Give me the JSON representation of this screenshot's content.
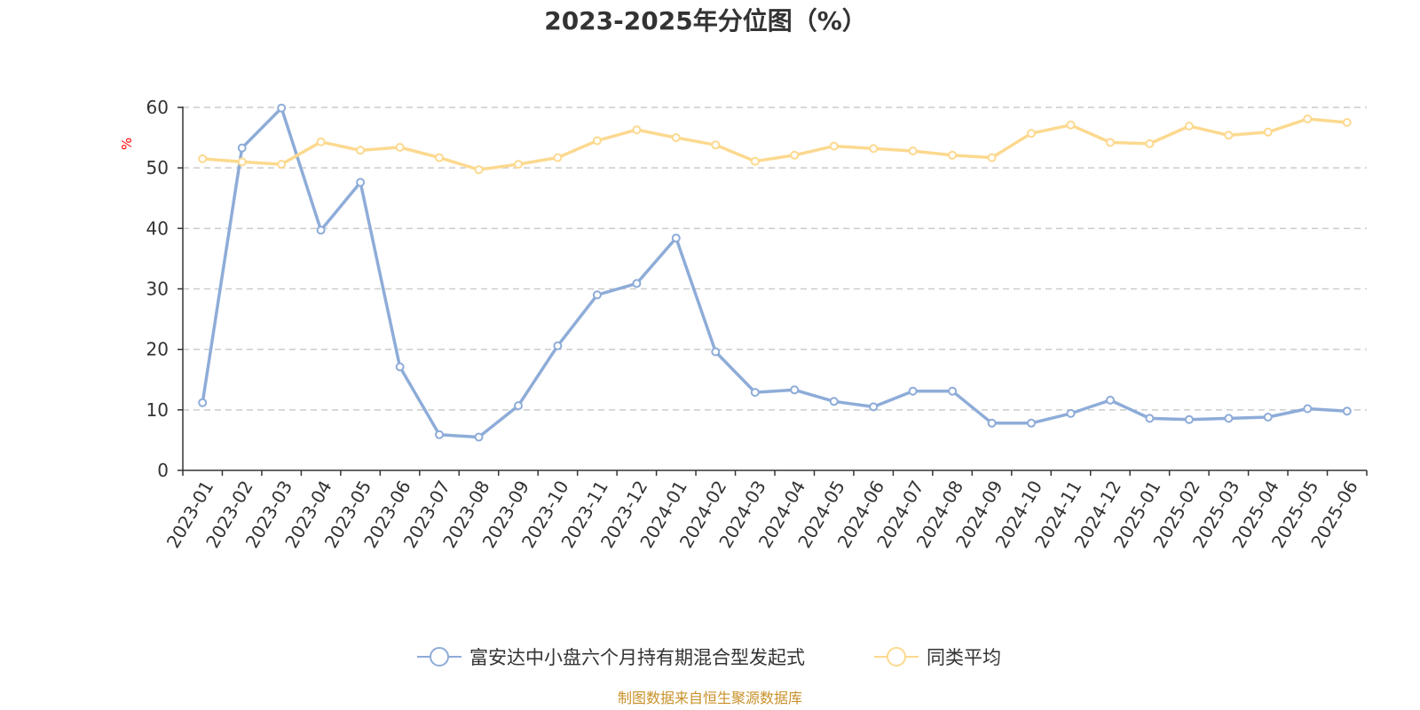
{
  "chart_data": {
    "type": "line",
    "title": "2023-2025年分位图（%）",
    "ylabel": "%",
    "xlabel": "",
    "ylim": [
      0,
      60
    ],
    "yticks": [
      0,
      10,
      20,
      30,
      40,
      50,
      60
    ],
    "grid": true,
    "legend_position": "bottom",
    "categories": [
      "2023-01",
      "2023-02",
      "2023-03",
      "2023-04",
      "2023-05",
      "2023-06",
      "2023-07",
      "2023-08",
      "2023-09",
      "2023-10",
      "2023-11",
      "2023-12",
      "2024-01",
      "2024-02",
      "2024-03",
      "2024-04",
      "2024-05",
      "2024-06",
      "2024-07",
      "2024-08",
      "2024-09",
      "2024-10",
      "2024-11",
      "2024-12",
      "2025-01",
      "2025-02",
      "2025-03",
      "2025-04",
      "2025-05",
      "2025-06"
    ],
    "series": [
      {
        "name": "富安达中小盘六个月持有期混合型发起式",
        "color": "#8eacd8",
        "values": [
          11.2,
          53.3,
          59.9,
          39.7,
          47.6,
          17.1,
          5.9,
          5.5,
          10.7,
          20.6,
          29.0,
          30.9,
          38.4,
          19.6,
          12.9,
          13.3,
          11.4,
          10.5,
          13.1,
          13.1,
          7.8,
          7.8,
          9.4,
          11.6,
          8.6,
          8.4,
          8.6,
          8.8,
          10.2,
          9.8
        ]
      },
      {
        "name": "同类平均",
        "color": "#fcd98f",
        "values": [
          51.5,
          51.0,
          50.6,
          54.3,
          52.9,
          53.4,
          51.7,
          49.7,
          50.6,
          51.7,
          54.5,
          56.3,
          55.0,
          53.8,
          51.1,
          52.1,
          53.6,
          53.2,
          52.8,
          52.1,
          51.7,
          55.7,
          57.1,
          54.2,
          54.0,
          56.9,
          55.4,
          55.9,
          58.1,
          57.5
        ]
      }
    ],
    "source": "制图数据来自恒生聚源数据库"
  }
}
